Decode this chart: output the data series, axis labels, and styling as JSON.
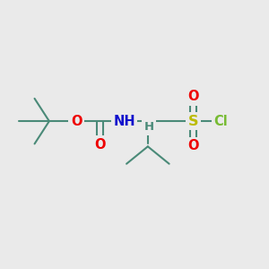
{
  "bg_color": "#eaeaea",
  "bond_color": "#4a8a78",
  "bond_lw": 1.5,
  "atom_colors": {
    "O": "#ee0000",
    "N": "#1010cc",
    "S": "#bbbb00",
    "Cl": "#77bb33",
    "H": "#4a8a78",
    "C": "#4a8a78"
  },
  "font_size": 9.5,
  "figsize": [
    3.0,
    3.0
  ],
  "dpi": 100
}
